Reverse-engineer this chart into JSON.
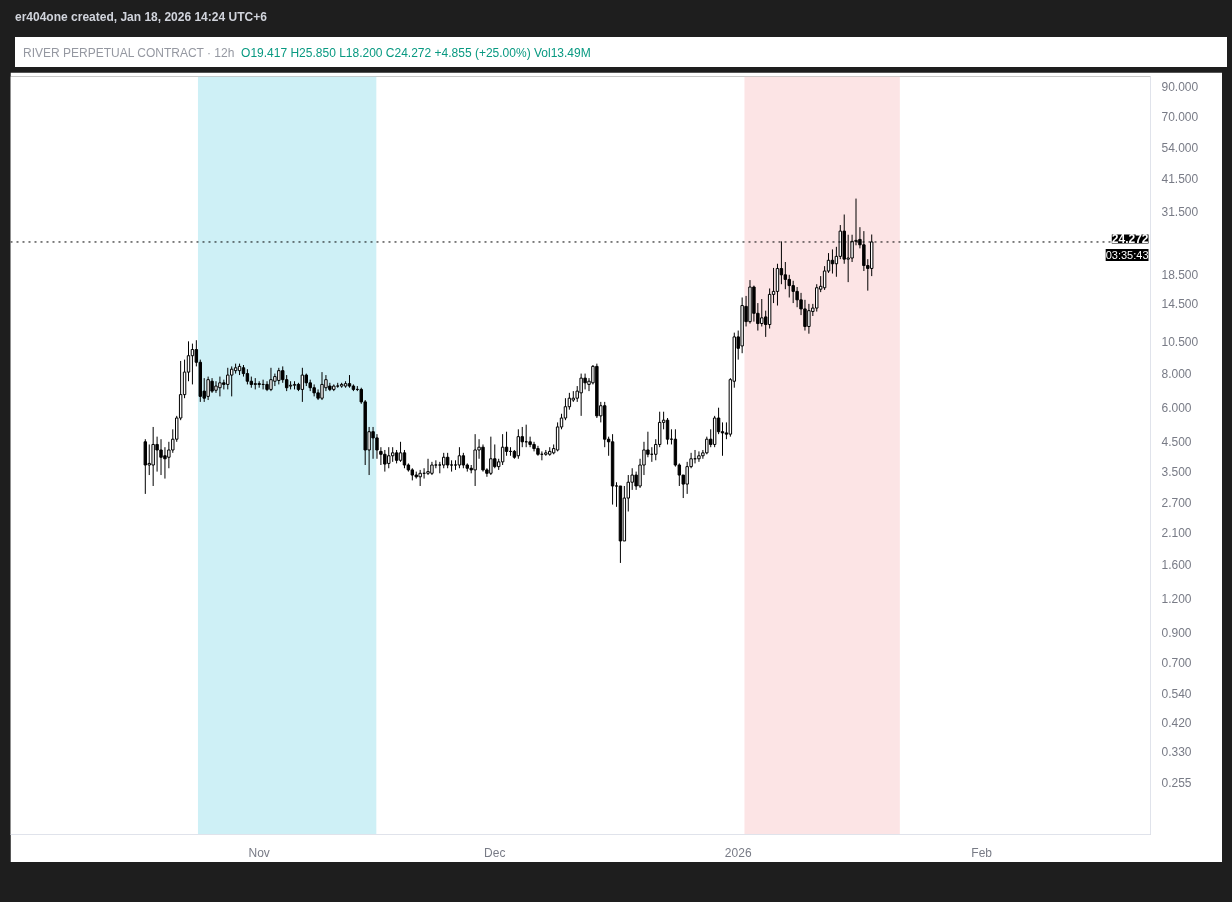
{
  "chart_data": {
    "type": "candlestick",
    "title": "RIVER PERPETUAL CONTRACT · 12h",
    "annotations": [
      "er404one created, Jan 18, 2026 14:24 UTC+6",
      "O19.417 H25.850 L18.200 C24.272 +4.855 (+25.00%) Vol13.49M",
      "03:35:43"
    ],
    "color": "#000000",
    "x": [
      "2025-10-17T12:00",
      "2025-10-18T00:00",
      "2025-10-18T12:00",
      "2025-10-19T00:00",
      "2025-10-19T12:00",
      "2025-10-20T00:00",
      "2025-10-20T12:00",
      "2025-10-21T00:00",
      "2025-10-21T12:00",
      "2025-10-22T00:00",
      "2025-10-22T12:00",
      "2025-10-23T00:00",
      "2025-10-23T12:00",
      "2025-10-24T00:00",
      "2025-10-24T12:00",
      "2025-10-25T00:00",
      "2025-10-25T12:00",
      "2025-10-26T00:00",
      "2025-10-26T12:00",
      "2025-10-27T00:00",
      "2025-10-27T12:00",
      "2025-10-28T00:00",
      "2025-10-28T12:00",
      "2025-10-29T00:00",
      "2025-10-29T12:00",
      "2025-10-30T00:00",
      "2025-10-30T12:00",
      "2025-10-31T00:00",
      "2025-10-31T12:00",
      "2025-11-01T00:00",
      "2025-11-01T12:00",
      "2025-11-02T00:00",
      "2025-11-02T12:00",
      "2025-11-03T00:00",
      "2025-11-03T12:00",
      "2025-11-04T00:00",
      "2025-11-04T12:00",
      "2025-11-05T00:00",
      "2025-11-05T12:00",
      "2025-11-06T00:00",
      "2025-11-06T12:00",
      "2025-11-07T00:00",
      "2025-11-07T12:00",
      "2025-11-08T00:00",
      "2025-11-08T12:00",
      "2025-11-09T00:00",
      "2025-11-09T12:00",
      "2025-11-10T00:00",
      "2025-11-10T12:00",
      "2025-11-11T00:00",
      "2025-11-11T12:00",
      "2025-11-12T00:00",
      "2025-11-12T12:00",
      "2025-11-13T00:00",
      "2025-11-13T12:00",
      "2025-11-14T00:00",
      "2025-11-14T12:00",
      "2025-11-15T00:00",
      "2025-11-15T12:00",
      "2025-11-16T00:00",
      "2025-11-16T12:00",
      "2025-11-17T00:00",
      "2025-11-17T12:00",
      "2025-11-18T00:00",
      "2025-11-18T12:00",
      "2025-11-19T00:00",
      "2025-11-19T12:00",
      "2025-11-20T00:00",
      "2025-11-20T12:00",
      "2025-11-21T00:00",
      "2025-11-21T12:00",
      "2025-11-22T00:00",
      "2025-11-22T12:00",
      "2025-11-23T00:00",
      "2025-11-23T12:00",
      "2025-11-24T00:00",
      "2025-11-24T12:00",
      "2025-11-25T00:00",
      "2025-11-25T12:00",
      "2025-11-26T00:00",
      "2025-11-26T12:00",
      "2025-11-27T00:00",
      "2025-11-27T12:00",
      "2025-11-28T00:00",
      "2025-11-28T12:00",
      "2025-11-29T00:00",
      "2025-11-29T12:00",
      "2025-11-30T00:00",
      "2025-11-30T12:00",
      "2025-12-01T00:00",
      "2025-12-01T12:00",
      "2025-12-02T00:00",
      "2025-12-02T12:00",
      "2025-12-03T00:00",
      "2025-12-03T12:00",
      "2025-12-04T00:00",
      "2025-12-04T12:00",
      "2025-12-05T00:00",
      "2025-12-05T12:00",
      "2025-12-06T00:00",
      "2025-12-06T12:00",
      "2025-12-07T00:00",
      "2025-12-07T12:00",
      "2025-12-08T00:00",
      "2025-12-08T12:00",
      "2025-12-09T00:00",
      "2025-12-09T12:00",
      "2025-12-10T00:00",
      "2025-12-10T12:00",
      "2025-12-11T00:00",
      "2025-12-11T12:00",
      "2025-12-12T00:00",
      "2025-12-12T12:00",
      "2025-12-13T00:00",
      "2025-12-13T12:00",
      "2025-12-14T00:00",
      "2025-12-14T12:00",
      "2025-12-15T00:00",
      "2025-12-15T12:00",
      "2025-12-16T00:00",
      "2025-12-16T12:00",
      "2025-12-17T00:00",
      "2025-12-17T12:00",
      "2025-12-18T00:00",
      "2025-12-18T12:00",
      "2025-12-19T00:00",
      "2025-12-19T12:00",
      "2025-12-20T00:00",
      "2025-12-20T12:00",
      "2025-12-21T00:00",
      "2025-12-21T12:00",
      "2025-12-22T00:00",
      "2025-12-22T12:00",
      "2025-12-23T00:00",
      "2025-12-23T12:00",
      "2025-12-24T00:00",
      "2025-12-24T12:00",
      "2025-12-25T00:00",
      "2025-12-25T12:00",
      "2025-12-26T00:00",
      "2025-12-26T12:00",
      "2025-12-27T00:00",
      "2025-12-27T12:00",
      "2025-12-28T00:00",
      "2025-12-28T12:00",
      "2025-12-29T00:00",
      "2025-12-29T12:00",
      "2025-12-30T00:00",
      "2025-12-30T12:00",
      "2025-12-31T00:00",
      "2025-12-31T12:00",
      "2026-01-01T00:00",
      "2026-01-01T12:00",
      "2026-01-02T00:00",
      "2026-01-02T12:00",
      "2026-01-03T00:00",
      "2026-01-03T12:00",
      "2026-01-04T00:00",
      "2026-01-04T12:00",
      "2026-01-05T00:00",
      "2026-01-05T12:00",
      "2026-01-06T00:00",
      "2026-01-06T12:00",
      "2026-01-07T00:00",
      "2026-01-07T12:00",
      "2026-01-08T00:00",
      "2026-01-08T12:00",
      "2026-01-09T00:00",
      "2026-01-09T12:00",
      "2026-01-10T00:00",
      "2026-01-10T12:00",
      "2026-01-11T00:00",
      "2026-01-11T12:00",
      "2026-01-12T00:00",
      "2026-01-12T12:00",
      "2026-01-13T00:00",
      "2026-01-13T12:00",
      "2026-01-14T00:00",
      "2026-01-14T12:00",
      "2026-01-15T00:00",
      "2026-01-15T12:00",
      "2026-01-16T00:00",
      "2026-01-16T12:00",
      "2026-01-17T00:00",
      "2026-01-17T12:00",
      "2026-01-18T00:00"
    ],
    "ohlc": [
      [
        4.5,
        4.6,
        2.9,
        3.7
      ],
      [
        3.7,
        4.4,
        3.4,
        3.75
      ],
      [
        3.7,
        5.1,
        3.1,
        4.4
      ],
      [
        4.4,
        4.7,
        3.5,
        4.2
      ],
      [
        4.2,
        4.6,
        3.4,
        3.95
      ],
      [
        4.0,
        4.3,
        3.3,
        3.9
      ],
      [
        3.95,
        4.5,
        3.6,
        4.2
      ],
      [
        4.2,
        5.0,
        4.1,
        4.6
      ],
      [
        4.6,
        5.6,
        4.5,
        5.5
      ],
      [
        5.5,
        8.9,
        5.4,
        6.7
      ],
      [
        6.7,
        9.0,
        6.5,
        8.1
      ],
      [
        8.1,
        10.5,
        7.5,
        9.3
      ],
      [
        9.3,
        10.3,
        7.3,
        9.8
      ],
      [
        9.8,
        10.6,
        8.5,
        8.8
      ],
      [
        8.8,
        9.0,
        6.3,
        6.6
      ],
      [
        6.9,
        7.7,
        6.3,
        6.5
      ],
      [
        6.6,
        7.8,
        6.4,
        7.6
      ],
      [
        7.5,
        7.7,
        6.8,
        6.9
      ],
      [
        6.95,
        7.5,
        6.8,
        7.2
      ],
      [
        7.1,
        7.8,
        6.6,
        7.4
      ],
      [
        7.4,
        7.6,
        7.0,
        7.3
      ],
      [
        7.3,
        8.4,
        7.0,
        7.9
      ],
      [
        7.9,
        8.5,
        6.6,
        8.3
      ],
      [
        8.2,
        8.7,
        8.0,
        8.4
      ],
      [
        8.2,
        8.7,
        7.9,
        8.5
      ],
      [
        8.4,
        8.6,
        7.8,
        8.0
      ],
      [
        8.0,
        8.3,
        7.3,
        7.5
      ],
      [
        7.5,
        7.8,
        7.1,
        7.3
      ],
      [
        7.3,
        7.7,
        7.0,
        7.35
      ],
      [
        7.35,
        7.5,
        7.1,
        7.3
      ],
      [
        7.3,
        7.6,
        7.0,
        7.3
      ],
      [
        7.3,
        7.5,
        6.9,
        7.0
      ],
      [
        7.0,
        8.4,
        6.9,
        7.6
      ],
      [
        7.5,
        8.0,
        7.2,
        7.8
      ],
      [
        7.55,
        8.4,
        7.3,
        8.2
      ],
      [
        8.2,
        8.5,
        7.4,
        7.6
      ],
      [
        7.6,
        7.9,
        6.9,
        7.1
      ],
      [
        7.2,
        7.5,
        7.0,
        7.25
      ],
      [
        7.25,
        7.5,
        7.0,
        7.3
      ],
      [
        7.3,
        7.4,
        6.9,
        7.0
      ],
      [
        7.0,
        8.4,
        6.3,
        7.9
      ],
      [
        7.9,
        8.0,
        7.2,
        7.4
      ],
      [
        7.4,
        7.6,
        6.9,
        7.1
      ],
      [
        7.1,
        7.3,
        6.6,
        6.8
      ],
      [
        6.8,
        7.0,
        6.4,
        6.5
      ],
      [
        6.5,
        8.1,
        6.4,
        7.3
      ],
      [
        7.1,
        7.9,
        6.9,
        7.6
      ],
      [
        7.2,
        7.4,
        6.9,
        7.0
      ],
      [
        7.0,
        7.3,
        6.9,
        7.2
      ],
      [
        7.2,
        7.4,
        7.1,
        7.2
      ],
      [
        7.2,
        7.4,
        7.1,
        7.3
      ],
      [
        7.2,
        7.5,
        7.1,
        7.35
      ],
      [
        7.35,
        7.9,
        7.1,
        7.2
      ],
      [
        7.2,
        7.3,
        6.9,
        7.0
      ],
      [
        7.0,
        7.2,
        6.9,
        7.0
      ],
      [
        7.0,
        7.1,
        6.2,
        6.3
      ],
      [
        6.3,
        6.4,
        3.7,
        4.2
      ],
      [
        4.2,
        5.1,
        3.4,
        4.9
      ],
      [
        4.9,
        5.1,
        3.9,
        4.65
      ],
      [
        4.65,
        4.8,
        3.9,
        4.2
      ],
      [
        4.15,
        4.3,
        3.7,
        4.05
      ],
      [
        4.05,
        4.2,
        3.5,
        3.73
      ],
      [
        3.75,
        4.3,
        3.6,
        4.0
      ],
      [
        4.0,
        4.3,
        3.8,
        4.1
      ],
      [
        4.1,
        4.2,
        3.75,
        3.85
      ],
      [
        3.85,
        4.5,
        3.8,
        4.1
      ],
      [
        4.1,
        4.2,
        3.6,
        3.7
      ],
      [
        3.7,
        3.75,
        3.5,
        3.55
      ],
      [
        3.55,
        3.6,
        3.25,
        3.4
      ],
      [
        3.4,
        3.5,
        3.3,
        3.35
      ],
      [
        3.35,
        3.55,
        3.1,
        3.45
      ],
      [
        3.45,
        3.6,
        3.3,
        3.45
      ],
      [
        3.45,
        3.9,
        3.4,
        3.5
      ],
      [
        3.45,
        3.8,
        3.4,
        3.7
      ],
      [
        3.7,
        3.85,
        3.6,
        3.7
      ],
      [
        3.7,
        3.8,
        3.45,
        3.7
      ],
      [
        3.7,
        4.1,
        3.6,
        3.95
      ],
      [
        3.95,
        4.1,
        3.6,
        3.7
      ],
      [
        3.7,
        3.85,
        3.5,
        3.7
      ],
      [
        3.7,
        3.85,
        3.55,
        3.7
      ],
      [
        3.7,
        4.3,
        3.6,
        4.0
      ],
      [
        4.0,
        4.1,
        3.6,
        3.7
      ],
      [
        3.7,
        3.75,
        3.5,
        3.6
      ],
      [
        3.6,
        3.7,
        3.45,
        3.55
      ],
      [
        3.55,
        4.8,
        3.1,
        4.2
      ],
      [
        4.2,
        4.6,
        3.9,
        4.3
      ],
      [
        4.3,
        4.4,
        3.5,
        3.55
      ],
      [
        3.55,
        3.6,
        3.35,
        3.45
      ],
      [
        3.45,
        4.7,
        3.4,
        3.9
      ],
      [
        3.9,
        4.4,
        3.6,
        3.65
      ],
      [
        3.65,
        3.9,
        3.55,
        3.8
      ],
      [
        3.8,
        4.8,
        3.7,
        4.3
      ],
      [
        4.3,
        4.9,
        4.0,
        4.15
      ],
      [
        4.15,
        4.3,
        4.0,
        4.15
      ],
      [
        4.15,
        4.2,
        3.9,
        3.95
      ],
      [
        4.0,
        5.0,
        3.9,
        4.7
      ],
      [
        4.7,
        5.1,
        4.3,
        4.5
      ],
      [
        4.5,
        5.2,
        4.3,
        4.5
      ],
      [
        4.5,
        4.7,
        4.3,
        4.4
      ],
      [
        4.4,
        4.5,
        4.15,
        4.25
      ],
      [
        4.25,
        4.35,
        4.0,
        4.05
      ],
      [
        4.05,
        4.15,
        3.85,
        4.05
      ],
      [
        4.05,
        4.2,
        4.0,
        4.1
      ],
      [
        4.05,
        4.3,
        4.0,
        4.15
      ],
      [
        4.1,
        4.4,
        4.05,
        4.25
      ],
      [
        4.2,
        5.3,
        4.15,
        5.1
      ],
      [
        5.1,
        5.7,
        5.0,
        5.5
      ],
      [
        5.5,
        6.5,
        5.4,
        6.05
      ],
      [
        6.05,
        6.8,
        5.9,
        6.5
      ],
      [
        6.4,
        6.9,
        6.3,
        6.5
      ],
      [
        6.5,
        7.2,
        6.3,
        6.9
      ],
      [
        6.8,
        8.0,
        5.6,
        7.7
      ],
      [
        7.7,
        8.0,
        7.0,
        7.4
      ],
      [
        7.3,
        7.7,
        6.9,
        7.5
      ],
      [
        7.4,
        8.6,
        7.3,
        8.5
      ],
      [
        8.5,
        8.7,
        5.5,
        5.6
      ],
      [
        5.6,
        6.3,
        5.3,
        6.1
      ],
      [
        6.1,
        6.3,
        4.3,
        4.6
      ],
      [
        4.6,
        4.7,
        4.0,
        4.5
      ],
      [
        4.5,
        4.8,
        2.65,
        3.1
      ],
      [
        3.1,
        3.2,
        2.6,
        3.1
      ],
      [
        3.1,
        3.1,
        1.62,
        1.95
      ],
      [
        1.95,
        3.1,
        1.95,
        2.8
      ],
      [
        2.8,
        3.4,
        2.5,
        3.2
      ],
      [
        3.2,
        3.6,
        3.0,
        3.4
      ],
      [
        3.4,
        3.5,
        3.0,
        3.1
      ],
      [
        3.1,
        3.9,
        3.05,
        3.7
      ],
      [
        3.7,
        4.5,
        3.4,
        4.2
      ],
      [
        4.2,
        4.9,
        3.95,
        4.05
      ],
      [
        4.05,
        4.3,
        3.8,
        4.05
      ],
      [
        4.05,
        4.6,
        3.85,
        4.4
      ],
      [
        4.4,
        5.8,
        4.3,
        5.3
      ],
      [
        5.3,
        5.8,
        5.0,
        5.4
      ],
      [
        5.4,
        5.5,
        4.4,
        4.6
      ],
      [
        4.6,
        5.0,
        4.4,
        4.6
      ],
      [
        4.6,
        5.0,
        3.65,
        3.7
      ],
      [
        3.7,
        3.75,
        3.1,
        3.4
      ],
      [
        3.4,
        3.4,
        2.8,
        3.15
      ],
      [
        3.15,
        3.8,
        2.9,
        3.65
      ],
      [
        3.65,
        4.1,
        3.6,
        3.9
      ],
      [
        3.9,
        4.2,
        3.75,
        3.9
      ],
      [
        3.9,
        4.15,
        3.8,
        4.0
      ],
      [
        4.0,
        4.2,
        3.9,
        4.1
      ],
      [
        4.1,
        4.7,
        4.05,
        4.6
      ],
      [
        4.6,
        5.0,
        4.3,
        4.4
      ],
      [
        4.4,
        5.6,
        4.3,
        5.5
      ],
      [
        5.5,
        6.0,
        4.8,
        4.9
      ],
      [
        4.9,
        5.3,
        4.0,
        4.85
      ],
      [
        4.85,
        5.3,
        4.6,
        4.8
      ],
      [
        4.8,
        7.7,
        4.7,
        7.6
      ],
      [
        7.5,
        11.3,
        7.1,
        10.9
      ],
      [
        10.9,
        11.5,
        9.0,
        9.9
      ],
      [
        10.1,
        15.2,
        9.5,
        14.2
      ],
      [
        14.1,
        15.4,
        11.9,
        12.4
      ],
      [
        12.4,
        17.6,
        12.2,
        16.6
      ],
      [
        16.6,
        16.8,
        12.4,
        13.3
      ],
      [
        13.3,
        14.5,
        11.5,
        12.2
      ],
      [
        12.2,
        15.0,
        11.9,
        12.8
      ],
      [
        12.9,
        13.6,
        10.9,
        12.1
      ],
      [
        12.1,
        16.4,
        11.7,
        15.6
      ],
      [
        15.6,
        19.5,
        14.5,
        16.0
      ],
      [
        16.0,
        20.2,
        14.2,
        19.4
      ],
      [
        19.4,
        24.4,
        17.0,
        18.4
      ],
      [
        18.4,
        20.5,
        16.3,
        17.7
      ],
      [
        17.7,
        18.4,
        15.2,
        16.8
      ],
      [
        16.8,
        17.5,
        14.5,
        16.0
      ],
      [
        16.0,
        16.6,
        14.0,
        14.9
      ],
      [
        14.9,
        15.8,
        13.1,
        13.8
      ],
      [
        13.8,
        14.9,
        11.5,
        11.9
      ],
      [
        11.9,
        14.4,
        11.2,
        13.6
      ],
      [
        13.5,
        14.4,
        13.0,
        13.9
      ],
      [
        13.9,
        17.0,
        13.5,
        16.5
      ],
      [
        16.3,
        18.2,
        15.9,
        16.7
      ],
      [
        16.5,
        19.8,
        16.2,
        19.0
      ],
      [
        19.0,
        22.1,
        18.7,
        20.8
      ],
      [
        20.8,
        22.8,
        18.6,
        20.2
      ],
      [
        20.2,
        23.3,
        18.1,
        21.5
      ],
      [
        21.5,
        28.0,
        21.0,
        26.6
      ],
      [
        26.6,
        30.6,
        20.2,
        21.0
      ],
      [
        21.0,
        25.8,
        17.3,
        21.2
      ],
      [
        21.2,
        25.8,
        20.5,
        24.4
      ],
      [
        24.4,
        35.0,
        23.6,
        24.6
      ],
      [
        24.8,
        27.5,
        23.0,
        23.7
      ],
      [
        23.7,
        26.6,
        19.0,
        19.9
      ],
      [
        19.9,
        21.0,
        16.1,
        19.417
      ],
      [
        19.417,
        25.85,
        18.2,
        24.272
      ]
    ],
    "log": "y",
    "xlim": [
      "2025-09-30T08:00",
      "2026-02-22T12:00"
    ],
    "xticks": [
      {
        "value": "2025-11-01",
        "label": "Nov"
      },
      {
        "value": "2025-12-01",
        "label": "Dec"
      },
      {
        "value": "2026-01-01",
        "label": "2026"
      },
      {
        "value": "2026-02-01",
        "label": "Feb"
      }
    ],
    "ylim": [
      0.164,
      98
    ],
    "yticks": [
      {
        "value": 90,
        "label": "90.000"
      },
      {
        "value": 70,
        "label": "70.000"
      },
      {
        "value": 54,
        "label": "54.000"
      },
      {
        "value": 41.5,
        "label": "41.500"
      },
      {
        "value": 31.5,
        "label": "31.500"
      },
      {
        "value": 18.5,
        "label": "18.500"
      },
      {
        "value": 14.5,
        "label": "14.500"
      },
      {
        "value": 10.5,
        "label": "10.500"
      },
      {
        "value": 8,
        "label": "8.000"
      },
      {
        "value": 6,
        "label": "6.000"
      },
      {
        "value": 4.5,
        "label": "4.500"
      },
      {
        "value": 3.5,
        "label": "3.500"
      },
      {
        "value": 2.7,
        "label": "2.700"
      },
      {
        "value": 2.1,
        "label": "2.100"
      },
      {
        "value": 1.6,
        "label": "1.600"
      },
      {
        "value": 1.2,
        "label": "1.200"
      },
      {
        "value": 0.9,
        "label": "0.900"
      },
      {
        "value": 0.7,
        "label": "0.700"
      },
      {
        "value": 0.54,
        "label": "0.540"
      },
      {
        "value": 0.42,
        "label": "0.420"
      },
      {
        "value": 0.33,
        "label": "0.330"
      },
      {
        "value": 0.255,
        "label": "0.255"
      }
    ],
    "ref_lines": [
      {
        "axis": "y",
        "value": 24.272,
        "label": "24.272",
        "color": "#000000",
        "line_style": "dotted"
      }
    ],
    "bands": [
      {
        "axis": "x",
        "from": "2025-10-24T05:00",
        "to": "2025-11-15T22:00",
        "color": "#a6e3ee"
      },
      {
        "axis": "x",
        "from": "2026-01-01T19:00",
        "to": "2026-01-21T14:00",
        "color": "#f9cdd0"
      }
    ],
    "grid": false
  }
}
